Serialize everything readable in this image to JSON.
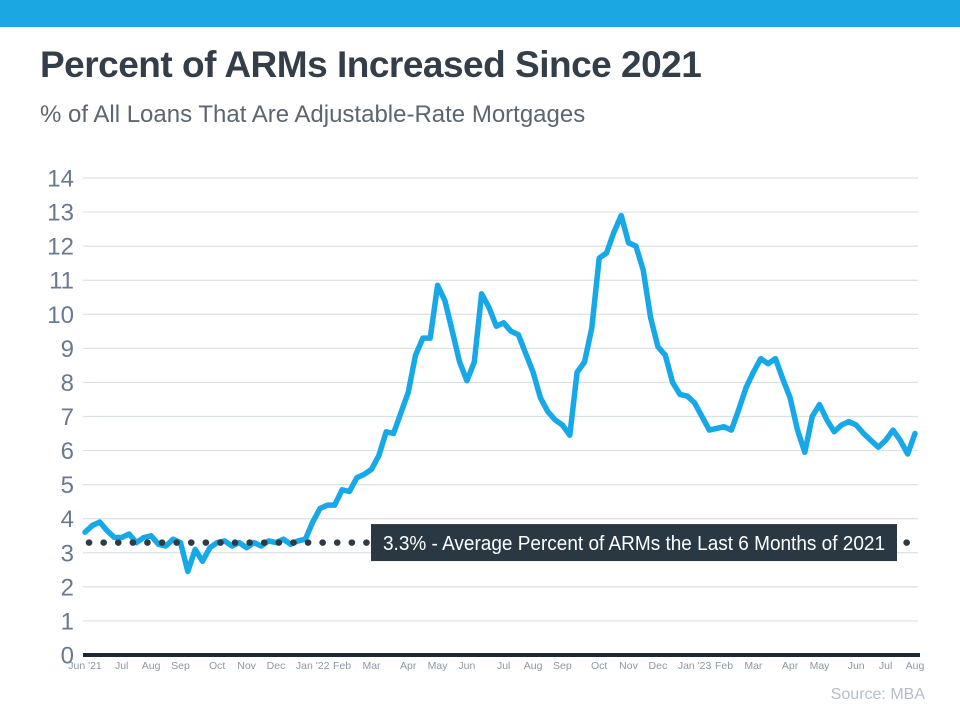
{
  "theme": {
    "accent_bar_color": "#1BA7E2",
    "line_color": "#17A8E8",
    "grid_color": "#DCE1E6",
    "axis_color": "#1C2A35",
    "annotation_box_color": "#2A3844",
    "dot_color": "#2E3B45"
  },
  "chart_data": {
    "type": "line",
    "title": "Percent of ARMs Increased Since 2021",
    "subtitle": "% of All Loans That Are Adjustable-Rate Mortgages",
    "source": "Source: MBA",
    "xlabel": "",
    "ylabel": "",
    "ylim": [
      0,
      14
    ],
    "y_ticks": [
      0,
      1,
      2,
      3,
      4,
      5,
      6,
      7,
      8,
      9,
      10,
      11,
      12,
      13,
      14
    ],
    "grid": true,
    "legend": "none",
    "x_unit": "weekly observations, Jun 2021 - Aug 2023",
    "month_labels": [
      {
        "label": "Jun '21",
        "week": 0
      },
      {
        "label": "Jul",
        "week": 5
      },
      {
        "label": "Aug",
        "week": 9
      },
      {
        "label": "Sep",
        "week": 13
      },
      {
        "label": "Oct",
        "week": 18
      },
      {
        "label": "Nov",
        "week": 22
      },
      {
        "label": "Dec",
        "week": 26
      },
      {
        "label": "Jan '22",
        "week": 31
      },
      {
        "label": "Feb",
        "week": 35
      },
      {
        "label": "Mar",
        "week": 39
      },
      {
        "label": "Apr",
        "week": 44
      },
      {
        "label": "May",
        "week": 48
      },
      {
        "label": "Jun",
        "week": 52
      },
      {
        "label": "Jul",
        "week": 57
      },
      {
        "label": "Aug",
        "week": 61
      },
      {
        "label": "Sep",
        "week": 65
      },
      {
        "label": "Oct",
        "week": 70
      },
      {
        "label": "Nov",
        "week": 74
      },
      {
        "label": "Dec",
        "week": 78
      },
      {
        "label": "Jan '23",
        "week": 83
      },
      {
        "label": "Feb",
        "week": 87
      },
      {
        "label": "Mar",
        "week": 91
      },
      {
        "label": "Apr",
        "week": 96
      },
      {
        "label": "May",
        "week": 100
      },
      {
        "label": "Jun",
        "week": 105
      },
      {
        "label": "Jul",
        "week": 109
      },
      {
        "label": "Aug",
        "week": 113
      }
    ],
    "series": [
      {
        "name": "% of all loans that are adjustable-rate mortgages",
        "color": "#17A8E8",
        "values": [
          3.6,
          3.8,
          3.9,
          3.65,
          3.45,
          3.45,
          3.55,
          3.3,
          3.45,
          3.5,
          3.25,
          3.2,
          3.4,
          3.3,
          2.45,
          3.1,
          2.75,
          3.15,
          3.3,
          3.35,
          3.2,
          3.3,
          3.15,
          3.3,
          3.2,
          3.35,
          3.3,
          3.4,
          3.25,
          3.35,
          3.4,
          3.9,
          4.3,
          4.4,
          4.4,
          4.85,
          4.8,
          5.2,
          5.3,
          5.45,
          5.85,
          6.55,
          6.5,
          7.1,
          7.7,
          8.8,
          9.3,
          9.3,
          10.85,
          10.4,
          9.5,
          8.6,
          8.05,
          8.6,
          10.6,
          10.2,
          9.65,
          9.75,
          9.5,
          9.4,
          8.85,
          8.3,
          7.55,
          7.15,
          6.9,
          6.75,
          6.45,
          8.3,
          8.6,
          9.6,
          11.65,
          11.8,
          12.4,
          12.9,
          12.1,
          12.0,
          11.3,
          9.9,
          9.05,
          8.8,
          8.0,
          7.65,
          7.6,
          7.4,
          7.0,
          6.6,
          6.65,
          6.7,
          6.6,
          7.2,
          7.85,
          8.3,
          8.7,
          8.55,
          8.7,
          8.1,
          7.55,
          6.6,
          5.95,
          7.0,
          7.35,
          6.9,
          6.55,
          6.75,
          6.85,
          6.75,
          6.5,
          6.3,
          6.1,
          6.3,
          6.6,
          6.3,
          5.9,
          6.5
        ]
      }
    ],
    "average_line": {
      "value": 3.3,
      "label": "3.3% - Average Percent of ARMs the Last 6 Months of 2021",
      "style": "dotted"
    }
  }
}
